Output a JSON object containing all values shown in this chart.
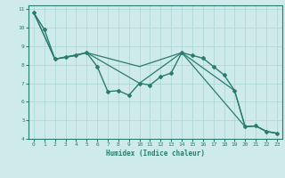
{
  "xlabel": "Humidex (Indice chaleur)",
  "xlim": [
    -0.5,
    23.5
  ],
  "ylim": [
    4,
    11.2
  ],
  "yticks": [
    4,
    5,
    6,
    7,
    8,
    9,
    10,
    11
  ],
  "xticks": [
    0,
    1,
    2,
    3,
    4,
    5,
    6,
    7,
    8,
    9,
    10,
    11,
    12,
    13,
    14,
    15,
    16,
    17,
    18,
    19,
    20,
    21,
    22,
    23
  ],
  "bg_color": "#ceeaea",
  "line_color": "#2a7d6e",
  "grid_color": "#aad4d4",
  "lines": [
    {
      "x": [
        0,
        1,
        2,
        3,
        4,
        5,
        6,
        7,
        8,
        9,
        10,
        11,
        12,
        13,
        14,
        15,
        16,
        17,
        18,
        19,
        20,
        21,
        22,
        23
      ],
      "y": [
        10.8,
        9.9,
        8.3,
        8.4,
        8.5,
        8.65,
        7.9,
        6.55,
        6.6,
        6.35,
        7.0,
        6.9,
        7.35,
        7.55,
        8.65,
        8.5,
        8.35,
        7.9,
        7.45,
        6.6,
        4.65,
        4.7,
        4.4,
        4.3
      ],
      "marker": true,
      "lw": 1.0
    },
    {
      "x": [
        0,
        2,
        4,
        5,
        10,
        14,
        20,
        21,
        22,
        23
      ],
      "y": [
        10.8,
        8.3,
        8.5,
        8.65,
        7.9,
        8.65,
        4.65,
        4.7,
        4.4,
        4.3
      ],
      "marker": false,
      "lw": 0.9
    },
    {
      "x": [
        0,
        2,
        5,
        10,
        14,
        19,
        20,
        21,
        22,
        23
      ],
      "y": [
        10.8,
        8.3,
        8.65,
        7.0,
        8.65,
        6.6,
        4.65,
        4.7,
        4.4,
        4.3
      ],
      "marker": false,
      "lw": 0.9
    }
  ]
}
